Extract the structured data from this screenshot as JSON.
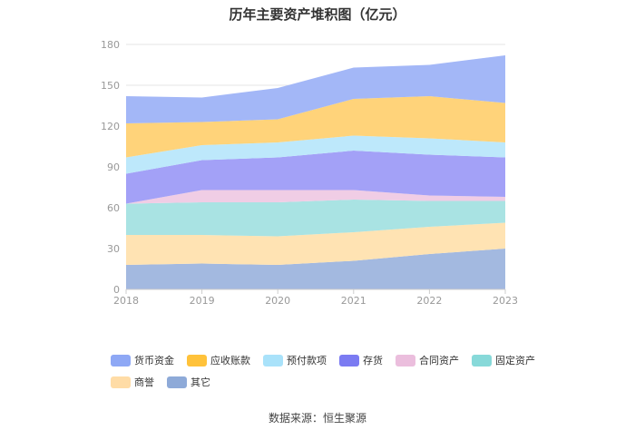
{
  "chart_data": {
    "type": "area",
    "stacked": true,
    "title": "历年主要资产堆积图（亿元）",
    "x": [
      "2018",
      "2019",
      "2020",
      "2021",
      "2022",
      "2023"
    ],
    "ylim": [
      0,
      180
    ],
    "yticks": [
      0,
      30,
      60,
      90,
      120,
      150,
      180
    ],
    "grid": true,
    "legend_position": "bottom",
    "series": [
      {
        "name": "货币资金",
        "color": "#a3b7f7",
        "values": [
          20,
          18,
          23,
          23,
          23,
          35
        ]
      },
      {
        "name": "应收账款",
        "color": "#ffd37a",
        "values": [
          25,
          17,
          17,
          27,
          31,
          29
        ]
      },
      {
        "name": "预付款项",
        "color": "#bde8fb",
        "values": [
          12,
          11,
          11,
          11,
          12,
          11
        ]
      },
      {
        "name": "存货",
        "color": "#a3a1f7",
        "values": [
          22,
          22,
          24,
          29,
          30,
          29
        ]
      },
      {
        "name": "合同资产",
        "color": "#f0cde5",
        "values": [
          0,
          9,
          9,
          7,
          4,
          3
        ]
      },
      {
        "name": "固定资产",
        "color": "#a9e3e3",
        "values": [
          23,
          24,
          25,
          24,
          19,
          16
        ]
      },
      {
        "name": "商誉",
        "color": "#ffe3b3",
        "values": [
          22,
          21,
          21,
          21,
          20,
          19
        ]
      },
      {
        "name": "其它",
        "color": "#a3b9e0",
        "values": [
          18,
          19,
          18,
          21,
          26,
          30
        ]
      }
    ],
    "legend_colors": [
      "#8ea8f5",
      "#ffc23a",
      "#a9e2fa",
      "#7b7bf2",
      "#ebbedd",
      "#87d9d9",
      "#ffdca6",
      "#8eaad8"
    ]
  },
  "source": "数据来源：恒生聚源"
}
